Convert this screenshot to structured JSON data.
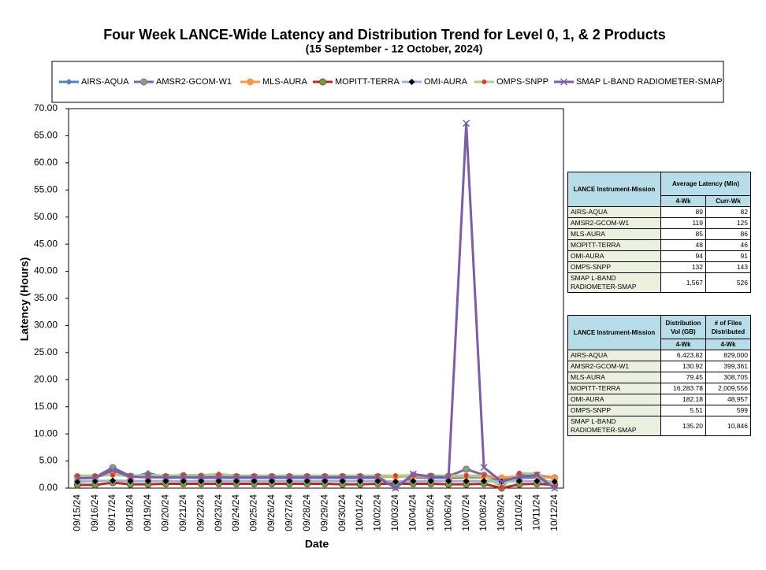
{
  "chart_data": {
    "type": "line",
    "title": "Four Week LANCE-Wide Latency and Distribution Trend for Level 0, 1, & 2 Products",
    "subtitle": "(15  September    - 12  October,  2024)",
    "x_label": "Date",
    "y_label": "Latency (Hours)",
    "categories": [
      "09/15/24",
      "09/16/24",
      "09/17/24",
      "09/18/24",
      "09/19/24",
      "09/20/24",
      "09/21/24",
      "09/22/24",
      "09/23/24",
      "09/24/24",
      "09/25/24",
      "09/26/24",
      "09/27/24",
      "09/28/24",
      "09/29/24",
      "09/30/24",
      "10/01/24",
      "10/02/24",
      "10/03/24",
      "10/04/24",
      "10/05/24",
      "10/06/24",
      "10/07/24",
      "10/08/24",
      "10/09/24",
      "10/10/24",
      "10/11/24",
      "10/12/24"
    ],
    "ylim": [
      0,
      70
    ],
    "yticks": [
      {
        "value": 0,
        "label": "0.00"
      },
      {
        "value": 5,
        "label": "5.00"
      },
      {
        "value": 10,
        "label": "10.00"
      },
      {
        "value": 15,
        "label": "15.00"
      },
      {
        "value": 20,
        "label": "20.00"
      },
      {
        "value": 25,
        "label": "25.00"
      },
      {
        "value": 30,
        "label": "30.00"
      },
      {
        "value": 35,
        "label": "35.00"
      },
      {
        "value": 40,
        "label": "40.00"
      },
      {
        "value": 45,
        "label": "45.00"
      },
      {
        "value": 50,
        "label": "50.00"
      },
      {
        "value": 55,
        "label": "55.00"
      },
      {
        "value": 60,
        "label": "60.00"
      },
      {
        "value": 65,
        "label": "65.00"
      },
      {
        "value": 70,
        "label": "70.00"
      }
    ],
    "grid": false,
    "series": [
      {
        "name": "AIRS-AQUA",
        "color": "#4f81bd",
        "marker": "diamond",
        "marker_color": "#4f81bd",
        "values": [
          1.8,
          1.9,
          3.5,
          1.9,
          2.8,
          1.9,
          2.0,
          1.9,
          1.9,
          1.9,
          1.9,
          1.9,
          1.9,
          1.9,
          1.9,
          1.9,
          1.9,
          1.9,
          0.3,
          2.0,
          1.9,
          1.9,
          2.0,
          2.0,
          1.5,
          1.9,
          2.0,
          0.1
        ]
      },
      {
        "name": "AMSR2-GCOM-W1",
        "color": "#8064a2",
        "marker": "circle",
        "marker_color": "#7fa873",
        "values": [
          2.0,
          2.0,
          3.8,
          2.2,
          2.1,
          2.1,
          2.3,
          2.1,
          2.1,
          2.1,
          2.1,
          2.1,
          2.1,
          2.1,
          2.1,
          2.1,
          2.1,
          2.1,
          0.2,
          2.4,
          2.2,
          2.2,
          3.5,
          2.4,
          1.6,
          2.3,
          2.4,
          1.9
        ]
      },
      {
        "name": "MLS-AURA",
        "color": "#f79646",
        "marker": "circle",
        "marker_color": "#f79646",
        "values": [
          2.1,
          2.1,
          2.6,
          2.1,
          2.1,
          2.1,
          2.1,
          2.1,
          2.2,
          2.1,
          2.1,
          2.1,
          2.1,
          2.1,
          2.1,
          2.1,
          2.1,
          2.1,
          2.1,
          2.2,
          2.1,
          2.1,
          2.2,
          2.1,
          1.9,
          2.2,
          2.3,
          1.8
        ]
      },
      {
        "name": "MOPITT-TERRA",
        "color": "#c0271b",
        "marker": "circle",
        "marker_color": "#4caf50",
        "values": [
          0.6,
          0.6,
          1.0,
          0.7,
          0.7,
          0.8,
          0.8,
          0.8,
          0.8,
          0.8,
          0.8,
          0.8,
          0.8,
          0.8,
          0.8,
          0.7,
          0.7,
          0.8,
          0.8,
          0.8,
          0.8,
          0.7,
          0.7,
          0.8,
          0.0,
          0.7,
          0.8,
          0.6
        ]
      },
      {
        "name": "OMI-AURA",
        "color": "#95b3d7",
        "marker": "diamond",
        "marker_color": "#000000",
        "values": [
          1.2,
          1.3,
          1.4,
          1.3,
          1.3,
          1.3,
          1.3,
          1.3,
          1.3,
          1.3,
          1.3,
          1.3,
          1.3,
          1.3,
          1.3,
          1.3,
          1.3,
          1.3,
          1.2,
          1.3,
          1.3,
          1.3,
          1.3,
          1.3,
          1.2,
          1.3,
          1.3,
          1.2
        ]
      },
      {
        "name": "OMPS-SNPP",
        "color": "#a9d18e",
        "marker": "dot",
        "marker_color": "#e03a2a",
        "values": [
          2.3,
          2.3,
          2.4,
          2.3,
          2.4,
          2.3,
          2.4,
          2.4,
          2.6,
          2.3,
          2.3,
          2.3,
          2.3,
          2.3,
          2.3,
          2.3,
          2.3,
          2.3,
          2.3,
          2.4,
          2.3,
          2.3,
          2.3,
          2.3,
          0.2,
          2.8,
          2.6,
          0.3
        ]
      },
      {
        "name": "SMAP L-BAND RADIOMETER-SMAP",
        "color": "#7b5ea7",
        "marker": "x",
        "marker_color": "#7b5ea7",
        "values": [
          1.8,
          1.9,
          3.3,
          2.1,
          2.0,
          2.0,
          2.0,
          2.0,
          2.0,
          2.0,
          2.0,
          2.0,
          2.0,
          2.0,
          2.0,
          2.0,
          2.0,
          2.0,
          0.0,
          2.6,
          2.1,
          2.0,
          67.3,
          3.8,
          1.2,
          2.1,
          2.4,
          0.0
        ]
      }
    ]
  },
  "latency_table": {
    "header": [
      "LANCE Instrument-Mission",
      "Average Latency (Min)"
    ],
    "subheader": [
      "4-Wk",
      "Curr-Wk"
    ],
    "rows": [
      [
        "AIRS-AQUA",
        "89",
        "82"
      ],
      [
        "AMSR2-GCOM-W1",
        "119",
        "125"
      ],
      [
        "MLS-AURA",
        "85",
        "86"
      ],
      [
        "MOPITT-TERRA",
        "48",
        "46"
      ],
      [
        "OMI-AURA",
        "94",
        "91"
      ],
      [
        "OMPS-SNPP",
        "132",
        "143"
      ],
      [
        "SMAP L-BAND RADIOMETER-SMAP",
        "1,567",
        "526"
      ]
    ]
  },
  "distribution_table": {
    "header": [
      "LANCE Instrument-Mission",
      "Distribution Vol (GB)",
      "# of Files Distributed"
    ],
    "subheader": [
      "4-Wk",
      "4-Wk"
    ],
    "rows": [
      [
        "AIRS-AQUA",
        "6,423.82",
        "829,000"
      ],
      [
        "AMSR2-GCOM-W1",
        "130.92",
        "399,361"
      ],
      [
        "MLS-AURA",
        "79.45",
        "308,705"
      ],
      [
        "MOPITT-TERRA",
        "16,283.78",
        "2,009,556"
      ],
      [
        "OMI-AURA",
        "182.18",
        "48,957"
      ],
      [
        "OMPS-SNPP",
        "5.51",
        "599"
      ],
      [
        "SMAP L-BAND RADIOMETER-SMAP",
        "135.20",
        "10,846"
      ]
    ]
  }
}
